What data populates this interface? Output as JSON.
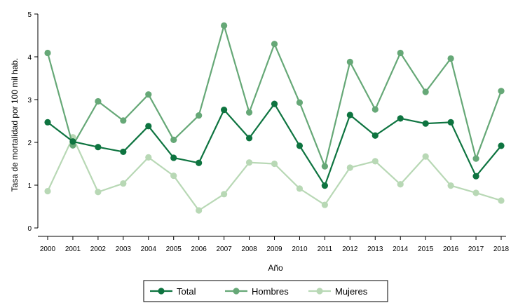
{
  "chart_data": {
    "type": "line",
    "xlabel": "Año",
    "ylabel": "Tasa de mortalidad por 100 mil hab.",
    "ylim": [
      0,
      5
    ],
    "yticks": [
      0,
      1,
      2,
      3,
      4,
      5
    ],
    "grid": false,
    "legend_position": "bottom",
    "categories": [
      "2000",
      "2001",
      "2002",
      "2003",
      "2004",
      "2005",
      "2006",
      "2007",
      "2008",
      "2009",
      "2010",
      "2011",
      "2012",
      "2013",
      "2014",
      "2015",
      "2016",
      "2017",
      "2018"
    ],
    "series": [
      {
        "name": "Total",
        "color": "#0e7440",
        "values": [
          2.47,
          2.02,
          1.89,
          1.78,
          2.38,
          1.64,
          1.52,
          2.76,
          2.1,
          2.9,
          1.92,
          0.99,
          2.64,
          2.16,
          2.56,
          2.44,
          2.47,
          1.21,
          1.92
        ]
      },
      {
        "name": "Hombres",
        "color": "#66a877",
        "values": [
          4.09,
          1.93,
          2.96,
          2.51,
          3.12,
          2.06,
          2.63,
          4.73,
          2.7,
          4.3,
          2.93,
          1.44,
          3.88,
          2.77,
          4.09,
          3.18,
          3.96,
          1.62,
          3.2
        ]
      },
      {
        "name": "Mujeres",
        "color": "#b8d8b5",
        "values": [
          0.86,
          2.12,
          0.84,
          1.04,
          1.65,
          1.22,
          0.41,
          0.79,
          1.53,
          1.5,
          0.92,
          0.54,
          1.41,
          1.56,
          1.02,
          1.67,
          0.99,
          0.82,
          0.64
        ]
      }
    ]
  }
}
